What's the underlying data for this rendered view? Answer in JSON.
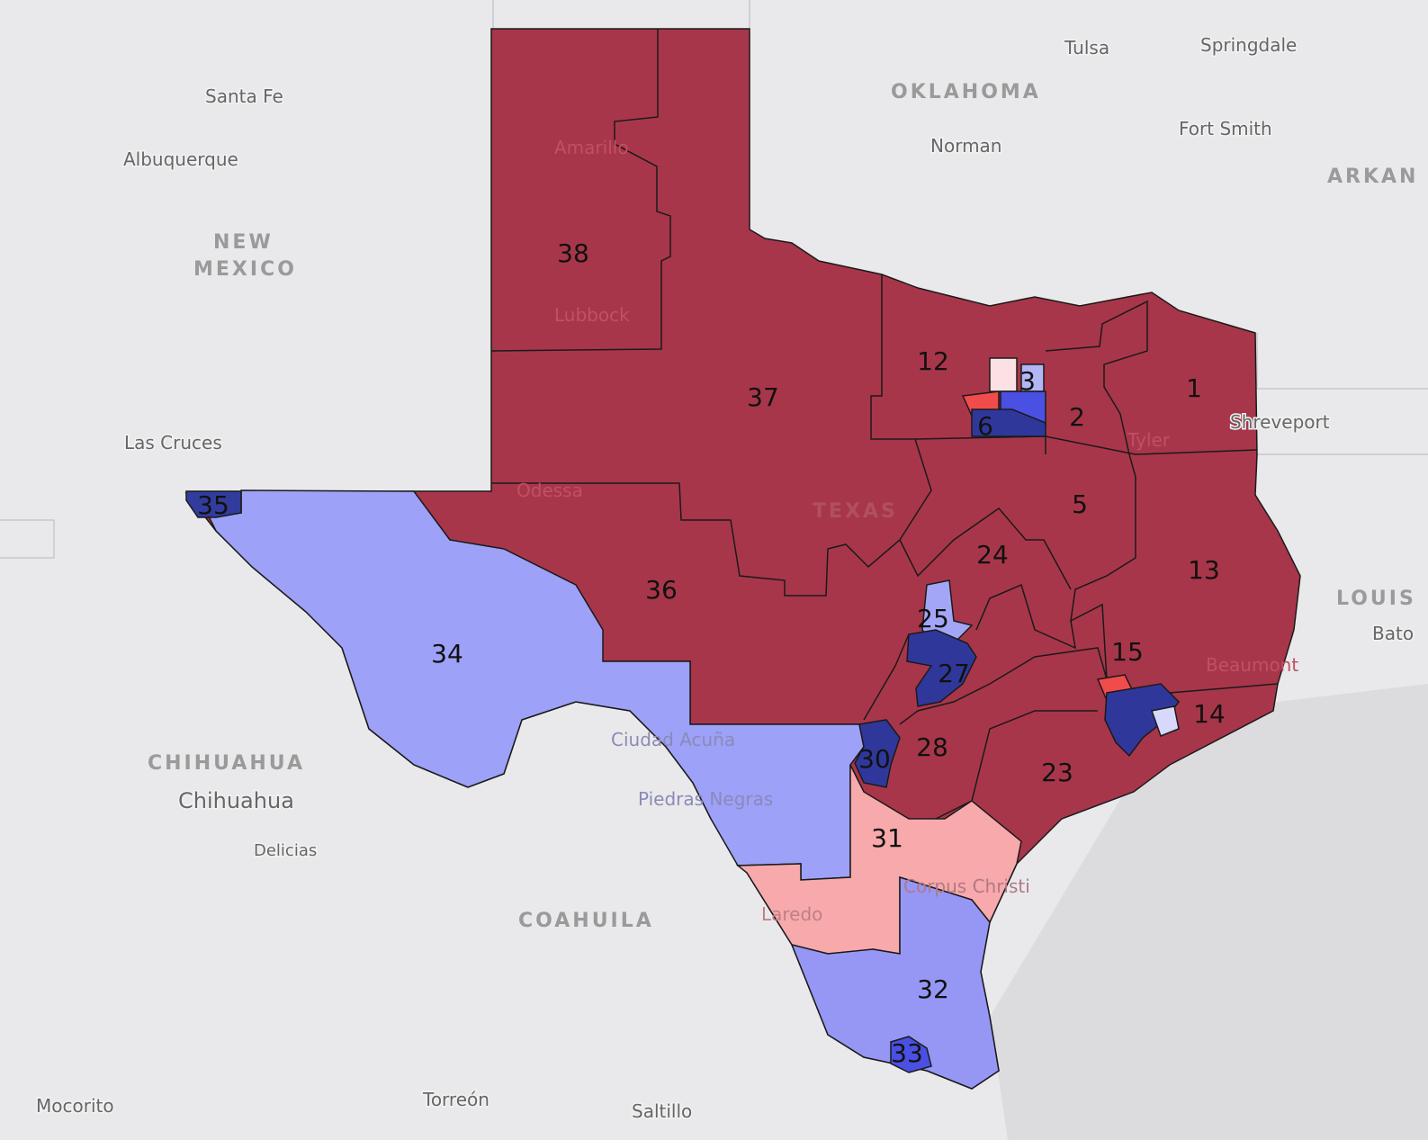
{
  "map": {
    "base_color": "#a8364a",
    "districts": [
      {
        "label": "38"
      },
      {
        "label": "37"
      },
      {
        "label": "12"
      },
      {
        "label": "3",
        "color": "#b3b6f6"
      },
      {
        "label": "6",
        "color": "#2f389a"
      },
      {
        "label": "2"
      },
      {
        "label": "1"
      },
      {
        "label": "5"
      },
      {
        "label": "24"
      },
      {
        "label": "36"
      },
      {
        "label": "35",
        "color": "#323c9c"
      },
      {
        "label": "34",
        "color": "#9da1f8"
      },
      {
        "label": "25",
        "color": "#a3a6f6"
      },
      {
        "label": "27",
        "color": "#2f389a"
      },
      {
        "label": "13"
      },
      {
        "label": "15"
      },
      {
        "label": "14"
      },
      {
        "label": "30",
        "color": "#2f389a"
      },
      {
        "label": "28"
      },
      {
        "label": "23"
      },
      {
        "label": "31",
        "color": "#f7a9ab"
      },
      {
        "label": "32",
        "color": "#9697f5"
      },
      {
        "label": "33",
        "color": "#4a50e2"
      }
    ],
    "regions": [
      "NEW",
      "MEXICO",
      "OKLAHOMA",
      "TEXAS",
      "CHIHUAHUA",
      "COAHUILA",
      "LOUIS",
      "ARKAN"
    ],
    "places": [
      "Santa Fe",
      "Albuquerque",
      "Las Cruces",
      "Amarillo",
      "Lubbock",
      "Odessa",
      "Tulsa",
      "Springdale",
      "Norman",
      "Fort Smith",
      "Shreveport",
      "Tyler",
      "Beaumont",
      "Bato",
      "Ciudad Acuña",
      "Piedras Negras",
      "Chihuahua",
      "Delicias",
      "Laredo",
      "Corpus Christi",
      "Mocorito",
      "Torreón",
      "Saltillo"
    ]
  }
}
